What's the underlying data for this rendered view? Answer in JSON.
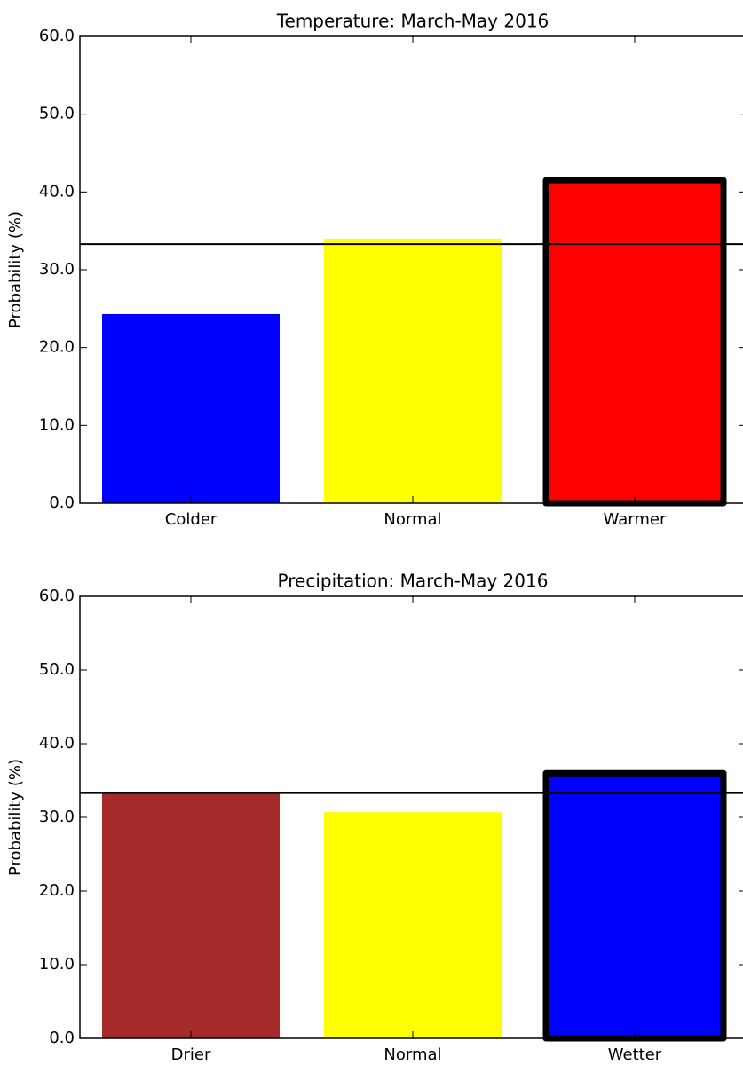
{
  "chart_data": [
    {
      "type": "bar",
      "title": "Temperature: March-May 2016",
      "y_label": "Probability (%)",
      "categories": [
        "Colder",
        "Normal",
        "Warmer"
      ],
      "values": [
        24.3,
        34.0,
        41.5
      ],
      "colors": [
        "#0000ff",
        "#ffff00",
        "#ff0000"
      ],
      "highlight_index": 2,
      "reference_line": 33.3,
      "ylim": [
        0,
        60
      ],
      "yticks": [
        {
          "value": 0,
          "label": "0.0"
        },
        {
          "value": 10,
          "label": "10.0"
        },
        {
          "value": 20,
          "label": "20.0"
        },
        {
          "value": 30,
          "label": "30.0"
        },
        {
          "value": 40,
          "label": "40.0"
        },
        {
          "value": 50,
          "label": "50.0"
        },
        {
          "value": 60,
          "label": "60.0"
        }
      ]
    },
    {
      "type": "bar",
      "title": "Precipitation: March-May 2016",
      "y_label": "Probability (%)",
      "categories": [
        "Drier",
        "Normal",
        "Wetter"
      ],
      "values": [
        33.3,
        30.7,
        36.0
      ],
      "colors": [
        "#a52a2a",
        "#ffff00",
        "#0000ff"
      ],
      "highlight_index": 2,
      "reference_line": 33.3,
      "ylim": [
        0,
        60
      ],
      "yticks": [
        {
          "value": 0,
          "label": "0.0"
        },
        {
          "value": 10,
          "label": "10.0"
        },
        {
          "value": 20,
          "label": "20.0"
        },
        {
          "value": 30,
          "label": "30.0"
        },
        {
          "value": 40,
          "label": "40.0"
        },
        {
          "value": 50,
          "label": "50.0"
        },
        {
          "value": 60,
          "label": "60.0"
        }
      ]
    }
  ]
}
